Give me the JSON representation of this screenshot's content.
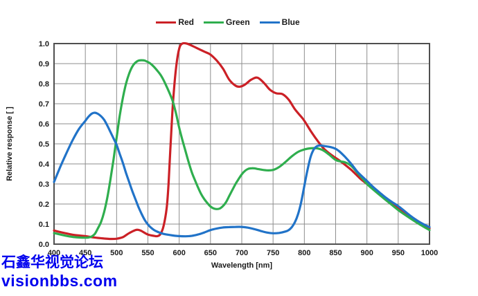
{
  "watermark": {
    "line1": "石鑫华视觉论坛",
    "line2": "visionbbs.com",
    "color": "#0000ee"
  },
  "legend": [
    {
      "label": "Red",
      "color": "#cb2026"
    },
    {
      "label": "Green",
      "color": "#2fae4e"
    },
    {
      "label": "Blue",
      "color": "#2173c8"
    }
  ],
  "colors": {
    "grid": "#8d8d8d",
    "plot_border": "#4f4f4f",
    "tick_text": "#1a1a1a",
    "background": "#ffffff"
  },
  "chart_data": {
    "type": "line",
    "title": "",
    "xlabel": "Wavelength [nm]",
    "ylabel": "Relative response [ ]",
    "xlim": [
      400,
      1000
    ],
    "ylim": [
      0.0,
      1.0
    ],
    "x_ticks": [
      400,
      450,
      500,
      550,
      600,
      650,
      700,
      750,
      800,
      850,
      900,
      950,
      1000
    ],
    "y_ticks": [
      0.0,
      0.1,
      0.2,
      0.3,
      0.4,
      0.5,
      0.6,
      0.7,
      0.8,
      0.9,
      1.0
    ],
    "grid": true,
    "legend_position": "top-center",
    "series": [
      {
        "name": "Red",
        "color": "#cb2026",
        "points": [
          [
            400,
            0.068
          ],
          [
            410,
            0.06
          ],
          [
            420,
            0.053
          ],
          [
            430,
            0.047
          ],
          [
            440,
            0.043
          ],
          [
            450,
            0.04
          ],
          [
            460,
            0.035
          ],
          [
            470,
            0.031
          ],
          [
            480,
            0.028
          ],
          [
            490,
            0.026
          ],
          [
            500,
            0.027
          ],
          [
            510,
            0.035
          ],
          [
            520,
            0.055
          ],
          [
            530,
            0.07
          ],
          [
            535,
            0.071
          ],
          [
            540,
            0.065
          ],
          [
            550,
            0.048
          ],
          [
            560,
            0.041
          ],
          [
            565,
            0.04
          ],
          [
            570,
            0.05
          ],
          [
            575,
            0.09
          ],
          [
            580,
            0.18
          ],
          [
            583,
            0.3
          ],
          [
            586,
            0.48
          ],
          [
            590,
            0.7
          ],
          [
            595,
            0.88
          ],
          [
            600,
            0.975
          ],
          [
            605,
            1.0
          ],
          [
            612,
            1.0
          ],
          [
            620,
            0.99
          ],
          [
            630,
            0.975
          ],
          [
            640,
            0.96
          ],
          [
            650,
            0.945
          ],
          [
            660,
            0.915
          ],
          [
            670,
            0.875
          ],
          [
            680,
            0.82
          ],
          [
            690,
            0.79
          ],
          [
            697,
            0.785
          ],
          [
            705,
            0.795
          ],
          [
            715,
            0.82
          ],
          [
            725,
            0.83
          ],
          [
            735,
            0.805
          ],
          [
            745,
            0.77
          ],
          [
            755,
            0.752
          ],
          [
            765,
            0.748
          ],
          [
            775,
            0.72
          ],
          [
            785,
            0.672
          ],
          [
            795,
            0.635
          ],
          [
            800,
            0.615
          ],
          [
            810,
            0.565
          ],
          [
            820,
            0.52
          ],
          [
            830,
            0.48
          ],
          [
            840,
            0.452
          ],
          [
            850,
            0.43
          ],
          [
            860,
            0.408
          ],
          [
            875,
            0.37
          ],
          [
            890,
            0.325
          ],
          [
            900,
            0.3
          ],
          [
            915,
            0.265
          ],
          [
            925,
            0.24
          ],
          [
            940,
            0.205
          ],
          [
            950,
            0.18
          ],
          [
            965,
            0.148
          ],
          [
            975,
            0.128
          ],
          [
            990,
            0.098
          ],
          [
            1000,
            0.078
          ]
        ]
      },
      {
        "name": "Green",
        "color": "#2fae4e",
        "points": [
          [
            400,
            0.055
          ],
          [
            410,
            0.048
          ],
          [
            420,
            0.041
          ],
          [
            430,
            0.036
          ],
          [
            440,
            0.033
          ],
          [
            450,
            0.032
          ],
          [
            455,
            0.033
          ],
          [
            460,
            0.038
          ],
          [
            465,
            0.05
          ],
          [
            470,
            0.078
          ],
          [
            475,
            0.11
          ],
          [
            480,
            0.16
          ],
          [
            485,
            0.23
          ],
          [
            490,
            0.32
          ],
          [
            495,
            0.42
          ],
          [
            500,
            0.53
          ],
          [
            505,
            0.64
          ],
          [
            510,
            0.73
          ],
          [
            515,
            0.8
          ],
          [
            520,
            0.85
          ],
          [
            525,
            0.885
          ],
          [
            530,
            0.905
          ],
          [
            535,
            0.915
          ],
          [
            540,
            0.917
          ],
          [
            545,
            0.915
          ],
          [
            550,
            0.908
          ],
          [
            555,
            0.898
          ],
          [
            560,
            0.883
          ],
          [
            565,
            0.865
          ],
          [
            570,
            0.845
          ],
          [
            575,
            0.818
          ],
          [
            580,
            0.785
          ],
          [
            585,
            0.75
          ],
          [
            590,
            0.71
          ],
          [
            595,
            0.65
          ],
          [
            600,
            0.58
          ],
          [
            605,
            0.52
          ],
          [
            610,
            0.465
          ],
          [
            615,
            0.41
          ],
          [
            620,
            0.36
          ],
          [
            625,
            0.32
          ],
          [
            630,
            0.283
          ],
          [
            635,
            0.25
          ],
          [
            640,
            0.225
          ],
          [
            645,
            0.205
          ],
          [
            650,
            0.188
          ],
          [
            655,
            0.178
          ],
          [
            660,
            0.175
          ],
          [
            665,
            0.178
          ],
          [
            670,
            0.19
          ],
          [
            675,
            0.21
          ],
          [
            680,
            0.24
          ],
          [
            685,
            0.27
          ],
          [
            690,
            0.3
          ],
          [
            695,
            0.325
          ],
          [
            700,
            0.348
          ],
          [
            705,
            0.365
          ],
          [
            710,
            0.375
          ],
          [
            715,
            0.378
          ],
          [
            720,
            0.378
          ],
          [
            725,
            0.375
          ],
          [
            730,
            0.372
          ],
          [
            740,
            0.368
          ],
          [
            750,
            0.37
          ],
          [
            760,
            0.385
          ],
          [
            770,
            0.41
          ],
          [
            780,
            0.438
          ],
          [
            790,
            0.46
          ],
          [
            800,
            0.472
          ],
          [
            810,
            0.478
          ],
          [
            820,
            0.478
          ],
          [
            830,
            0.468
          ],
          [
            840,
            0.445
          ],
          [
            850,
            0.42
          ],
          [
            858,
            0.412
          ],
          [
            865,
            0.408
          ],
          [
            875,
            0.39
          ],
          [
            885,
            0.355
          ],
          [
            895,
            0.32
          ],
          [
            900,
            0.3
          ],
          [
            910,
            0.272
          ],
          [
            920,
            0.246
          ],
          [
            930,
            0.22
          ],
          [
            940,
            0.195
          ],
          [
            950,
            0.17
          ],
          [
            960,
            0.148
          ],
          [
            970,
            0.127
          ],
          [
            980,
            0.107
          ],
          [
            990,
            0.088
          ],
          [
            1000,
            0.07
          ]
        ]
      },
      {
        "name": "Blue",
        "color": "#2173c8",
        "points": [
          [
            400,
            0.31
          ],
          [
            410,
            0.385
          ],
          [
            420,
            0.455
          ],
          [
            430,
            0.52
          ],
          [
            440,
            0.575
          ],
          [
            450,
            0.615
          ],
          [
            455,
            0.635
          ],
          [
            460,
            0.65
          ],
          [
            465,
            0.655
          ],
          [
            470,
            0.65
          ],
          [
            475,
            0.638
          ],
          [
            480,
            0.62
          ],
          [
            485,
            0.592
          ],
          [
            490,
            0.56
          ],
          [
            495,
            0.528
          ],
          [
            500,
            0.495
          ],
          [
            505,
            0.45
          ],
          [
            510,
            0.405
          ],
          [
            515,
            0.355
          ],
          [
            520,
            0.31
          ],
          [
            525,
            0.265
          ],
          [
            530,
            0.225
          ],
          [
            535,
            0.185
          ],
          [
            540,
            0.15
          ],
          [
            545,
            0.12
          ],
          [
            550,
            0.098
          ],
          [
            555,
            0.082
          ],
          [
            560,
            0.07
          ],
          [
            565,
            0.062
          ],
          [
            570,
            0.056
          ],
          [
            575,
            0.051
          ],
          [
            580,
            0.048
          ],
          [
            590,
            0.043
          ],
          [
            600,
            0.04
          ],
          [
            610,
            0.039
          ],
          [
            620,
            0.041
          ],
          [
            630,
            0.048
          ],
          [
            640,
            0.058
          ],
          [
            650,
            0.07
          ],
          [
            660,
            0.078
          ],
          [
            670,
            0.083
          ],
          [
            680,
            0.085
          ],
          [
            690,
            0.086
          ],
          [
            700,
            0.086
          ],
          [
            710,
            0.082
          ],
          [
            720,
            0.075
          ],
          [
            730,
            0.066
          ],
          [
            740,
            0.058
          ],
          [
            750,
            0.054
          ],
          [
            760,
            0.056
          ],
          [
            770,
            0.063
          ],
          [
            775,
            0.07
          ],
          [
            780,
            0.085
          ],
          [
            785,
            0.11
          ],
          [
            790,
            0.15
          ],
          [
            795,
            0.21
          ],
          [
            800,
            0.29
          ],
          [
            805,
            0.37
          ],
          [
            810,
            0.435
          ],
          [
            815,
            0.472
          ],
          [
            820,
            0.488
          ],
          [
            825,
            0.492
          ],
          [
            830,
            0.49
          ],
          [
            840,
            0.485
          ],
          [
            848,
            0.478
          ],
          [
            855,
            0.465
          ],
          [
            865,
            0.435
          ],
          [
            875,
            0.4
          ],
          [
            885,
            0.36
          ],
          [
            895,
            0.33
          ],
          [
            900,
            0.315
          ],
          [
            910,
            0.285
          ],
          [
            920,
            0.258
          ],
          [
            930,
            0.232
          ],
          [
            940,
            0.21
          ],
          [
            950,
            0.19
          ],
          [
            960,
            0.165
          ],
          [
            970,
            0.14
          ],
          [
            980,
            0.118
          ],
          [
            990,
            0.1
          ],
          [
            1000,
            0.085
          ]
        ]
      }
    ]
  }
}
